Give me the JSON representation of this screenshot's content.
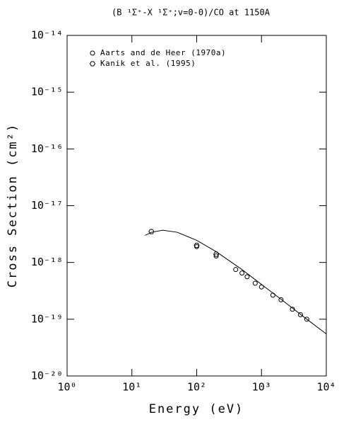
{
  "chart_data": {
    "type": "scatter",
    "title": "(B ¹Σ⁺-X ¹Σ⁺;v=0-0)/CO at 1150A",
    "x_label": "Energy (eV)",
    "y_label": "Cross Section (cm²)",
    "log_x": true,
    "log_y": true,
    "xlim": [
      1,
      10000
    ],
    "ylim": [
      1e-20,
      1e-14
    ],
    "xticks": [
      {
        "value": 1,
        "label": "10⁰"
      },
      {
        "value": 10,
        "label": "10¹"
      },
      {
        "value": 100,
        "label": "10²"
      },
      {
        "value": 1000,
        "label": "10³"
      },
      {
        "value": 10000,
        "label": "10⁴"
      }
    ],
    "yticks": [
      {
        "value": 1e-20,
        "label": "10⁻²⁰"
      },
      {
        "value": 1e-19,
        "label": "10⁻¹⁹"
      },
      {
        "value": 1e-18,
        "label": "10⁻¹⁸"
      },
      {
        "value": 1e-17,
        "label": "10⁻¹⁷"
      },
      {
        "value": 1e-16,
        "label": "10⁻¹⁶"
      },
      {
        "value": 1e-15,
        "label": "10⁻¹⁵"
      },
      {
        "value": 1e-14,
        "label": "10⁻¹⁴"
      }
    ],
    "legend": "upper-left",
    "series": [
      {
        "name": "Aarts and de Heer (1970a)",
        "marker": "circle",
        "color": "#000000",
        "x": [
          100,
          200,
          400,
          500,
          600,
          800,
          1000,
          1500,
          2000,
          3000,
          4000,
          5000
        ],
        "values": [
          1.9e-18,
          1.3e-18,
          7.5e-19,
          6.5e-19,
          5.6e-19,
          4.3e-19,
          3.7e-19,
          2.65e-19,
          2.2e-19,
          1.5e-19,
          1.2e-19,
          1e-19
        ]
      },
      {
        "name": "Kanik et al. (1995)",
        "marker": "hexagon",
        "color": "#000000",
        "x": [
          20,
          100,
          200
        ],
        "values": [
          3.5e-18,
          2e-18,
          1.4e-18
        ]
      }
    ],
    "fit": {
      "color": "#000000",
      "x": [
        16,
        20,
        30,
        50,
        100,
        200,
        500,
        1000,
        2000,
        5000,
        10000
      ],
      "values": [
        3e-18,
        3.4e-18,
        3.7e-18,
        3.4e-18,
        2.45e-18,
        1.55e-18,
        7.5e-19,
        4.1e-19,
        2.25e-19,
        1e-19,
        5.5e-20
      ]
    }
  }
}
